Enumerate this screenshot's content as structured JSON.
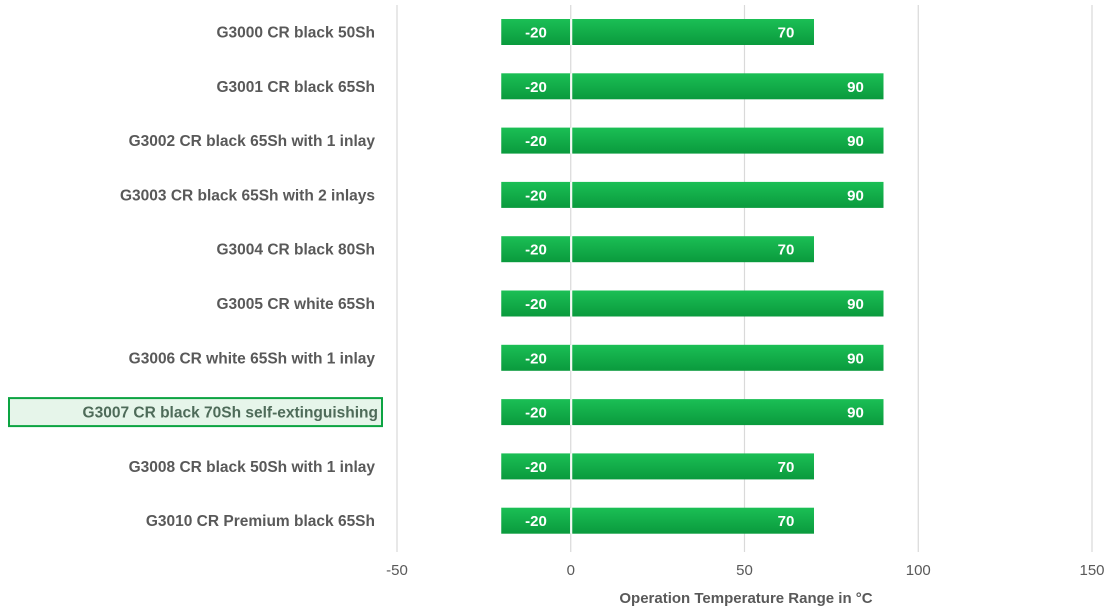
{
  "chart_data": {
    "type": "bar",
    "orientation": "horizontal",
    "categories": [
      "G3000 CR black 50Sh",
      "G3001 CR black 65Sh",
      "G3002 CR black 65Sh with 1 inlay",
      "G3003 CR black 65Sh with 2 inlays",
      "G3004 CR black 80Sh",
      "G3005 CR white 65Sh",
      "G3006 CR white 65Sh with 1 inlay",
      "G3007 CR black 70Sh self-extinguishing",
      "G3008 CR black 50Sh with 1 inlay",
      "G3010 CR Premium black 65Sh"
    ],
    "highlighted_category": "G3007 CR black 70Sh self-extinguishing",
    "series": [
      {
        "values": [
          -20,
          -20,
          -20,
          -20,
          -20,
          -20,
          -20,
          -20,
          -20,
          -20
        ]
      },
      {
        "values": [
          70,
          90,
          90,
          90,
          70,
          90,
          90,
          90,
          70,
          70
        ]
      }
    ],
    "xlabel": "Operation Temperature Range in °C",
    "xlim": [
      -50,
      150
    ],
    "xticks": [
      -50,
      0,
      50,
      100,
      150
    ],
    "grid": "vertical",
    "colors": {
      "bar": "#0ca442",
      "bar_light": "#1bbf55",
      "highlight_border": "#0ca442",
      "highlight_fill": "#e6f5ea",
      "text": "#595959",
      "grid": "#d9d9d9"
    }
  }
}
